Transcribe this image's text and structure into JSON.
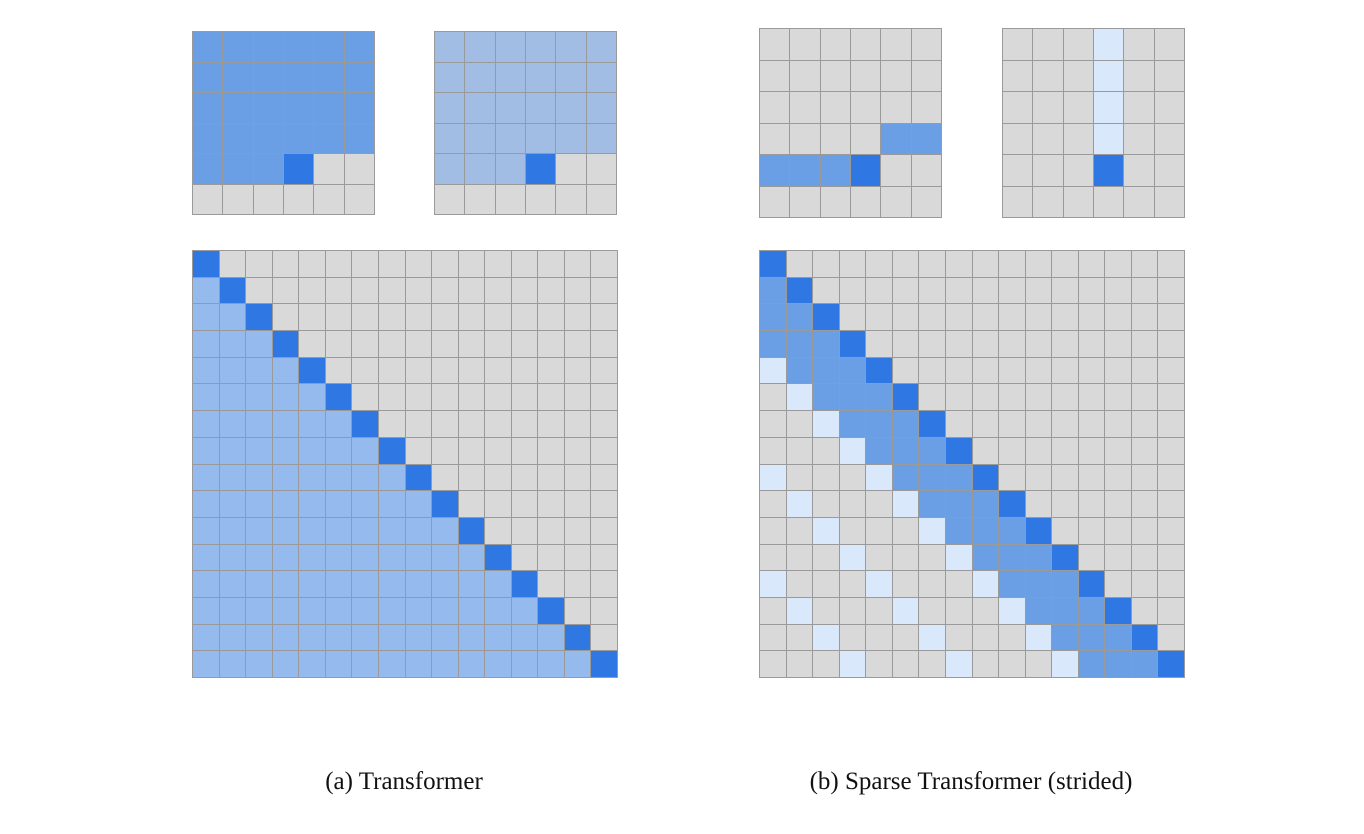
{
  "colors": {
    "empty": "#d9d9d9",
    "query": "#2f78e3",
    "attend_medium": "#6a9fe6",
    "attend_light": "#95bbee",
    "attend_muted": "#a1bde3",
    "attend_pale": "#d9e8fb",
    "grid_line": "#9a9a9a"
  },
  "captions": {
    "a": "(a)  Transformer",
    "b": "(b)  Sparse Transformer (strided)"
  },
  "panels": {
    "a_top_left": [
      "mmmmmm",
      "mmmmmm",
      "mmmmmm",
      "mmmmmm",
      "mmmdgg",
      "gggggg"
    ],
    "a_top_right": [
      "ssssss",
      "ssssss",
      "ssssss",
      "ssssss",
      "sssdgg",
      "gggggg"
    ],
    "b_top_left": [
      "gggggg",
      "gggggg",
      "gggggg",
      "ggggmm",
      "mmmdgg",
      "gggggg"
    ],
    "b_top_right": [
      "gggpgg",
      "gggpgg",
      "gggpgg",
      "gggpgg",
      "gggdgg",
      "gggggg"
    ],
    "a_bottom": {
      "size": 16,
      "pattern": "full_causal"
    },
    "b_bottom": {
      "size": 16,
      "pattern": "strided",
      "stride": 4
    }
  }
}
